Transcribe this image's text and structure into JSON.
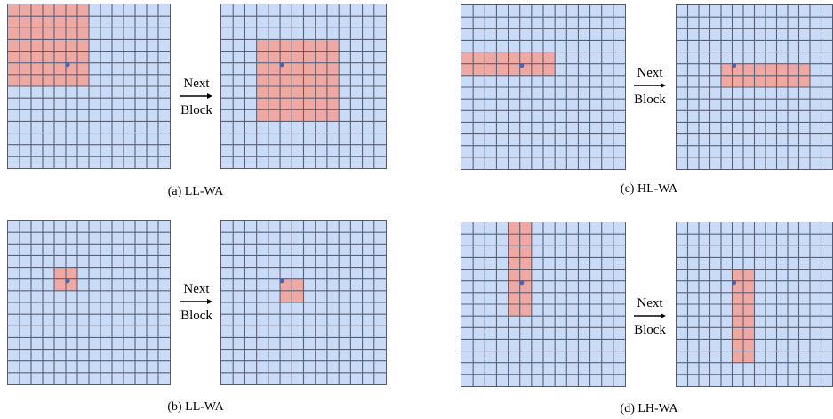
{
  "grid_cells": 14,
  "colors": {
    "cell": "#c9dbf7",
    "line": "#5a6176",
    "highlight": "#f0a9a2",
    "dot": "#4a63b3"
  },
  "panels": [
    {
      "caption": "(a) LL-WA",
      "between_line1": "Next",
      "between_line2": "Block",
      "before": {
        "window": {
          "col": 0,
          "row": 0,
          "w": 7,
          "h": 7
        },
        "dot": {
          "col": 5,
          "row": 5
        }
      },
      "after": {
        "window": {
          "col": 3,
          "row": 3,
          "w": 7,
          "h": 7
        },
        "dot": {
          "col": 5,
          "row": 5
        }
      }
    },
    {
      "caption": "(b) LL-WA",
      "between_line1": "Next",
      "between_line2": "Block",
      "before": {
        "window": {
          "col": 4,
          "row": 4,
          "w": 2,
          "h": 2
        },
        "dot": {
          "col": 5,
          "row": 5
        }
      },
      "after": {
        "window": {
          "col": 5,
          "row": 5,
          "w": 2,
          "h": 2
        },
        "dot": {
          "col": 5,
          "row": 5
        }
      }
    },
    {
      "caption": "(c) HL-WA",
      "between_line1": "Next",
      "between_line2": "Block",
      "before": {
        "window": {
          "col": 0,
          "row": 4,
          "w": 8,
          "h": 2
        },
        "dot": {
          "col": 5,
          "row": 5
        }
      },
      "after": {
        "window": {
          "col": 4,
          "row": 5,
          "w": 8,
          "h": 2
        },
        "dot": {
          "col": 5,
          "row": 5
        }
      }
    },
    {
      "caption": "(d) LH-WA",
      "between_line1": "Next",
      "between_line2": "Block",
      "before": {
        "window": {
          "col": 4,
          "row": 0,
          "w": 2,
          "h": 8
        },
        "dot": {
          "col": 5,
          "row": 5
        }
      },
      "after": {
        "window": {
          "col": 5,
          "row": 4,
          "w": 2,
          "h": 8
        },
        "dot": {
          "col": 5,
          "row": 5
        }
      }
    }
  ]
}
